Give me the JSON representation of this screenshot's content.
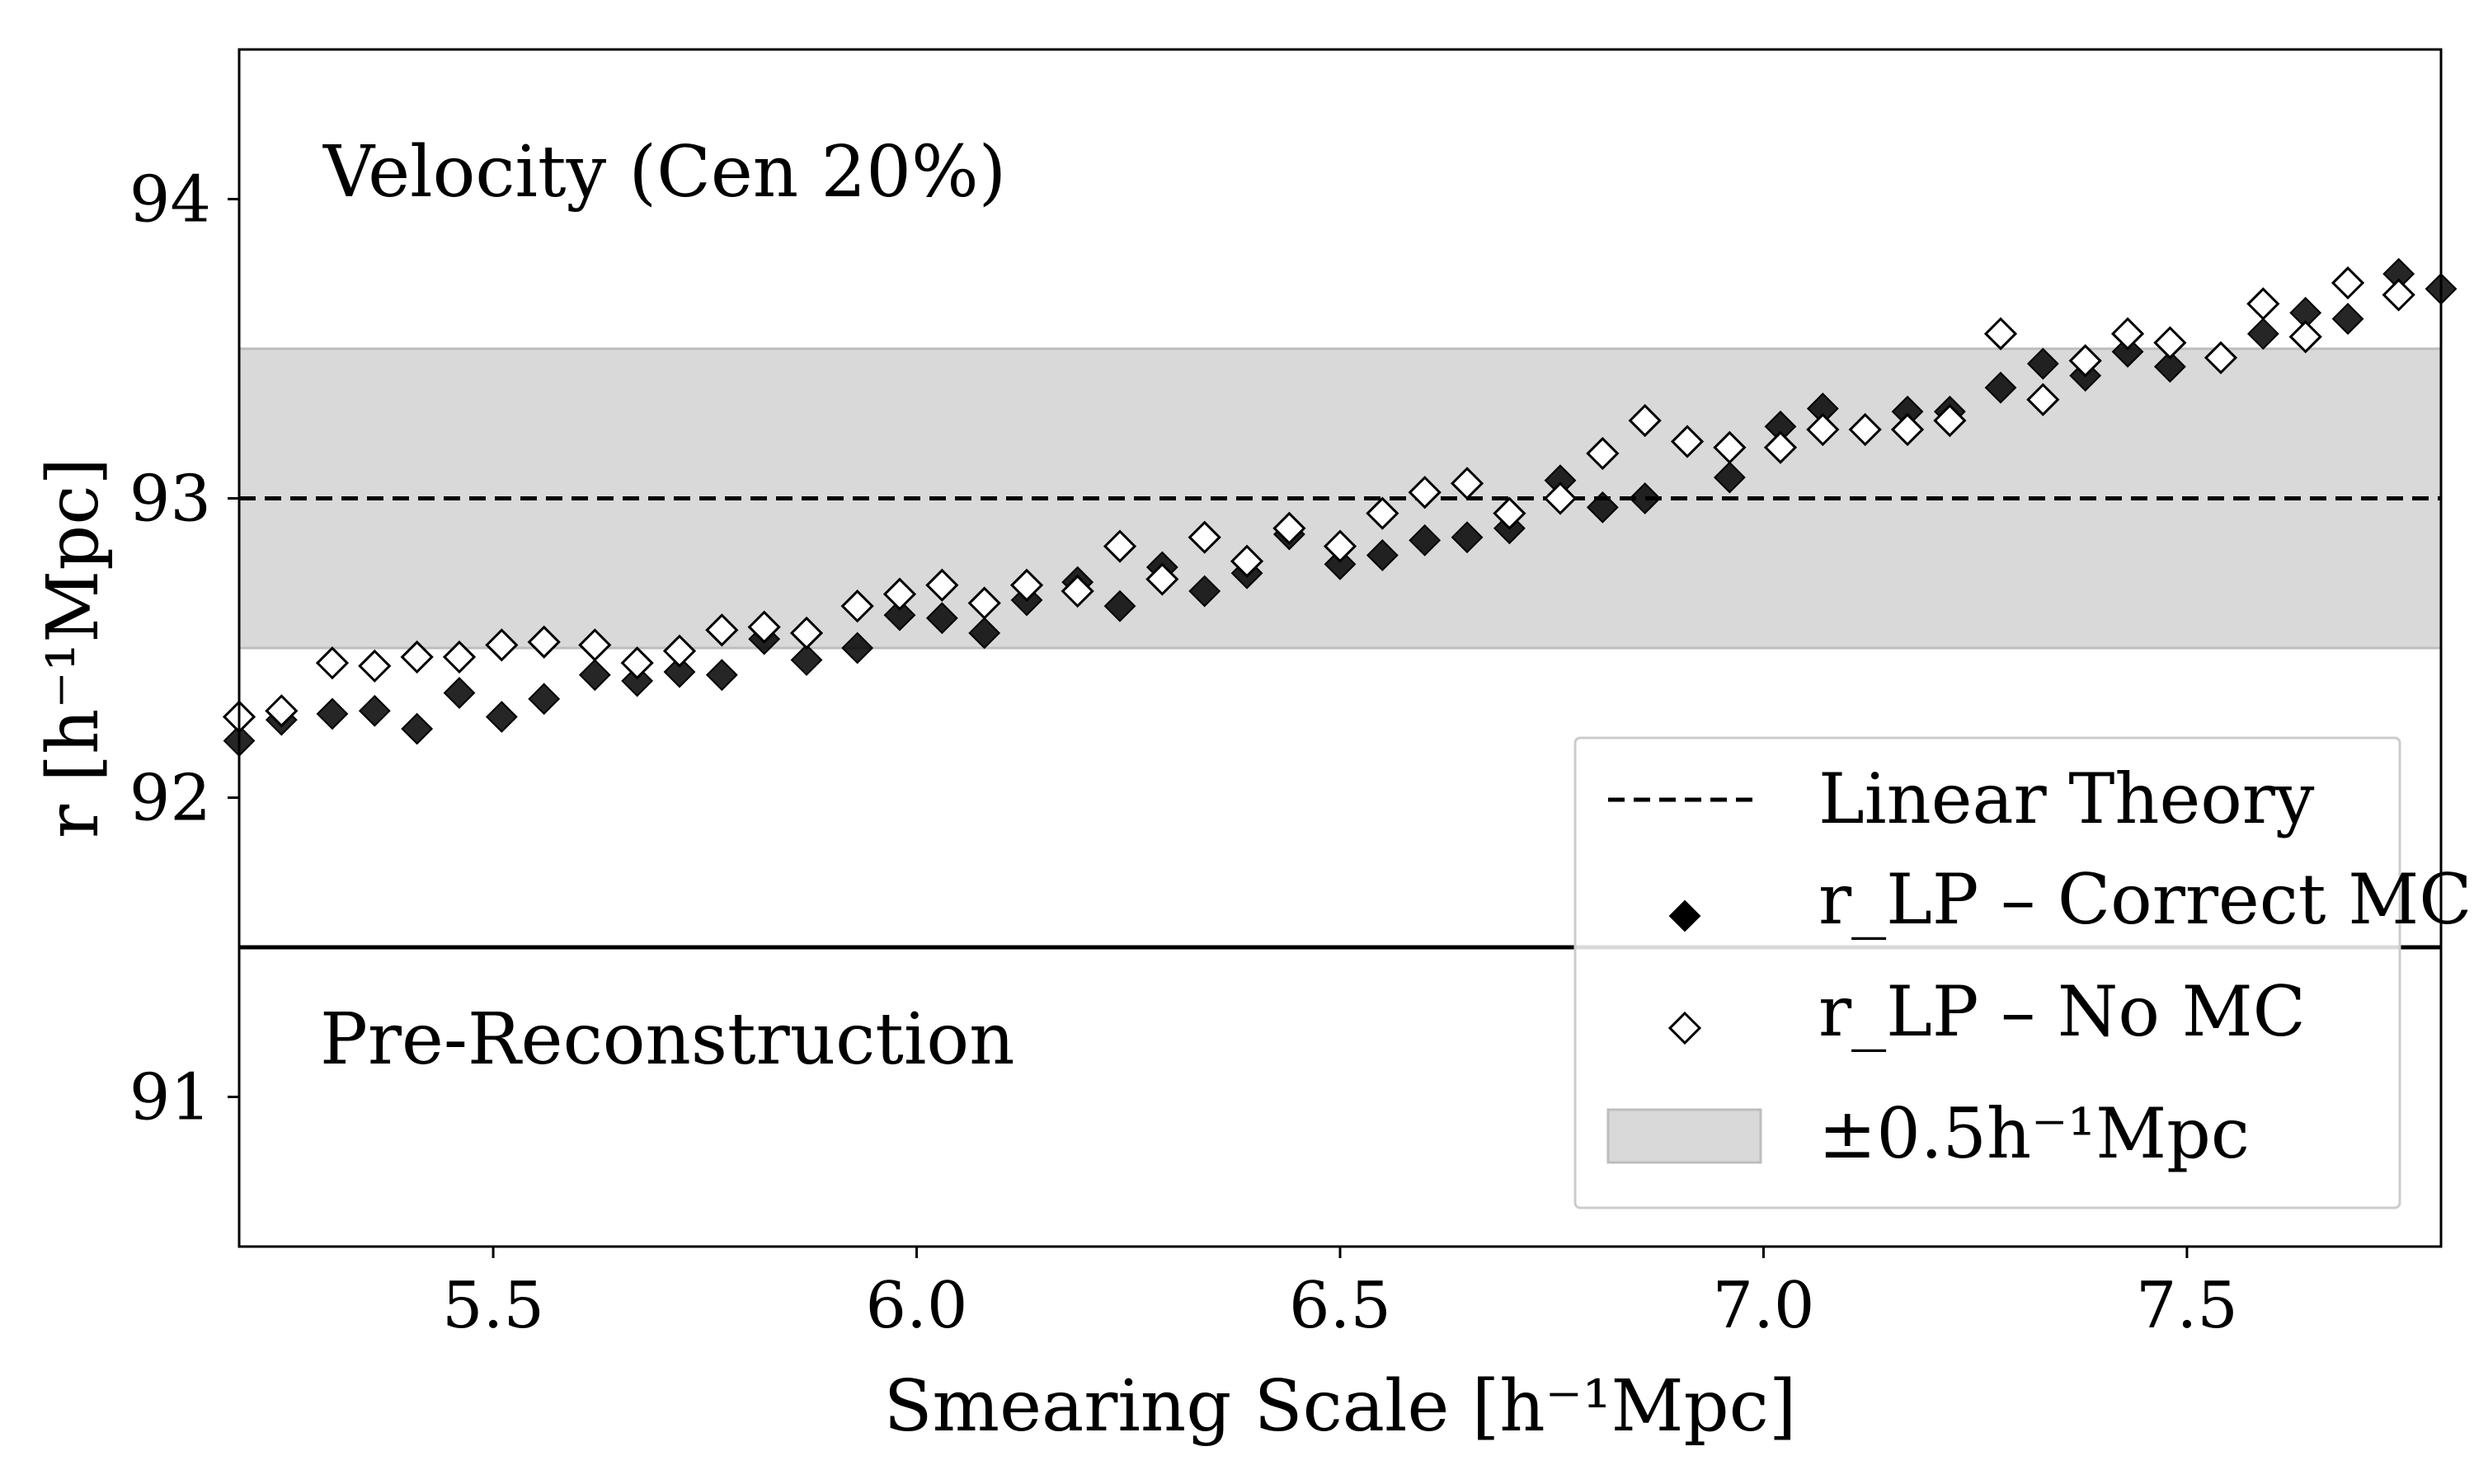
{
  "chart_data": {
    "type": "scatter",
    "xlabel": "Smearing Scale [h⁻¹Mpc]",
    "ylabel": "r [h⁻¹Mpc]",
    "xlim": [
      5.2,
      7.8
    ],
    "ylim": [
      90.5,
      94.5
    ],
    "xticks": [
      5.5,
      6.0,
      6.5,
      7.0,
      7.5
    ],
    "xtick_labels": [
      "5.5",
      "6.0",
      "6.5",
      "7.0",
      "7.5"
    ],
    "yticks": [
      91,
      92,
      93,
      94
    ],
    "ytick_labels": [
      "91",
      "92",
      "93",
      "94"
    ],
    "annotations": {
      "top": "Velocity (Cen 20%)",
      "bottom": "Pre-Reconstruction"
    },
    "linear_theory": 93.0,
    "band": [
      92.5,
      93.5
    ],
    "pre_reconstruction_line": 91.5,
    "legend": {
      "linear_theory": "Linear Theory",
      "correct_mc": "r_LP – Correct MC",
      "no_mc": "r_LP – No MC",
      "band": "±0.5h⁻¹Mpc"
    },
    "series": [
      {
        "name": "r_LP – Correct MC",
        "marker": "filled-diamond",
        "x": [
          5.2,
          5.25,
          5.31,
          5.36,
          5.41,
          5.46,
          5.51,
          5.56,
          5.62,
          5.67,
          5.72,
          5.77,
          5.82,
          5.87,
          5.93,
          5.98,
          6.03,
          6.08,
          6.13,
          6.19,
          6.24,
          6.29,
          6.34,
          6.39,
          6.44,
          6.5,
          6.55,
          6.6,
          6.65,
          6.7,
          6.76,
          6.81,
          6.86,
          6.91,
          6.96,
          7.02,
          7.07,
          7.12,
          7.17,
          7.22,
          7.28,
          7.33,
          7.38,
          7.43,
          7.48,
          7.54,
          7.59,
          7.64,
          7.69,
          7.75,
          7.8
        ],
        "y": [
          92.19,
          92.26,
          92.28,
          92.29,
          92.23,
          92.35,
          92.27,
          92.33,
          92.41,
          92.39,
          92.42,
          92.41,
          92.53,
          92.46,
          92.5,
          92.61,
          92.6,
          92.55,
          92.66,
          92.72,
          92.64,
          92.77,
          92.69,
          92.75,
          92.88,
          92.78,
          92.81,
          92.86,
          92.87,
          92.9,
          93.06,
          92.97,
          93.0,
          93.19,
          93.07,
          93.24,
          93.3,
          93.23,
          93.29,
          93.29,
          93.37,
          93.45,
          93.41,
          93.49,
          93.44,
          93.47,
          93.55,
          93.62,
          93.6,
          93.75,
          93.7
        ]
      },
      {
        "name": "r_LP – No MC",
        "marker": "open-diamond",
        "x": [
          5.2,
          5.25,
          5.31,
          5.36,
          5.41,
          5.46,
          5.51,
          5.56,
          5.62,
          5.67,
          5.72,
          5.77,
          5.82,
          5.87,
          5.93,
          5.98,
          6.03,
          6.08,
          6.13,
          6.19,
          6.24,
          6.29,
          6.34,
          6.39,
          6.44,
          6.5,
          6.55,
          6.6,
          6.65,
          6.7,
          6.76,
          6.81,
          6.86,
          6.91,
          6.96,
          7.02,
          7.07,
          7.12,
          7.17,
          7.22,
          7.28,
          7.33,
          7.38,
          7.43,
          7.48,
          7.54,
          7.59,
          7.64,
          7.69,
          7.75
        ],
        "y": [
          92.27,
          92.29,
          92.45,
          92.44,
          92.47,
          92.47,
          92.51,
          92.52,
          92.51,
          92.45,
          92.49,
          92.56,
          92.57,
          92.55,
          92.64,
          92.68,
          92.71,
          92.65,
          92.71,
          92.69,
          92.84,
          92.73,
          92.87,
          92.79,
          92.9,
          92.84,
          92.95,
          93.02,
          93.05,
          92.95,
          93.0,
          93.15,
          93.26,
          93.19,
          93.17,
          93.17,
          93.23,
          93.23,
          93.23,
          93.26,
          93.55,
          93.33,
          93.46,
          93.55,
          93.52,
          93.47,
          93.65,
          93.54,
          93.72,
          93.68
        ]
      }
    ],
    "colors": {
      "band": "#d9d9d9",
      "band_edge": "#bdbdbd",
      "filled_marker": "#000000",
      "open_marker_fill": "#ffffff",
      "axis": "#000000"
    }
  }
}
